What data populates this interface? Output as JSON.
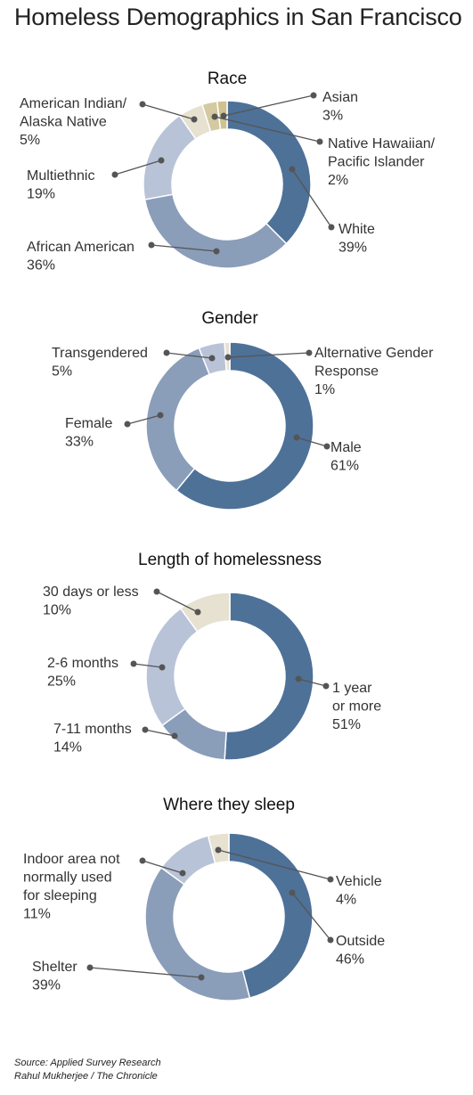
{
  "title": "Homeless Demographics in San Francisco",
  "source_line1": "Source: Applied Survey Research",
  "source_line2": "Rahul Mukherjee / The Chronicle",
  "chart_data": [
    {
      "type": "pie",
      "title": "Race",
      "slices": [
        {
          "lines": [
            "White"
          ],
          "pct_label": "39%",
          "value": 39,
          "color": "#4e7198"
        },
        {
          "lines": [
            "African American"
          ],
          "pct_label": "36%",
          "value": 36,
          "color": "#8a9db9"
        },
        {
          "lines": [
            "Multiethnic"
          ],
          "pct_label": "19%",
          "value": 19,
          "color": "#b8c3d8"
        },
        {
          "lines": [
            "American Indian/",
            "Alaska Native"
          ],
          "pct_label": "5%",
          "value": 5,
          "color": "#e6e1d0"
        },
        {
          "lines": [
            "Asian"
          ],
          "pct_label": "3%",
          "value": 3,
          "color": "#d4c9a0"
        },
        {
          "lines": [
            "Native Hawaiian/",
            "Pacific Islander"
          ],
          "pct_label": "2%",
          "value": 2,
          "color": "#cfc290"
        }
      ]
    },
    {
      "type": "pie",
      "title": "Gender",
      "slices": [
        {
          "lines": [
            "Male"
          ],
          "pct_label": "61%",
          "value": 61,
          "color": "#4e7198"
        },
        {
          "lines": [
            "Female"
          ],
          "pct_label": "33%",
          "value": 33,
          "color": "#8a9db9"
        },
        {
          "lines": [
            "Transgendered"
          ],
          "pct_label": "5%",
          "value": 5,
          "color": "#b8c3d8"
        },
        {
          "lines": [
            "Alternative Gender",
            "Response"
          ],
          "pct_label": "1%",
          "value": 1,
          "color": "#e6e1d0"
        }
      ]
    },
    {
      "type": "pie",
      "title": "Length of  homelessness",
      "slices": [
        {
          "lines": [
            "1 year",
            "or more"
          ],
          "pct_label": "51%",
          "value": 51,
          "color": "#4e7198"
        },
        {
          "lines": [
            "7-11 months"
          ],
          "pct_label": "14%",
          "value": 14,
          "color": "#8a9db9"
        },
        {
          "lines": [
            "2-6 months"
          ],
          "pct_label": "25%",
          "value": 25,
          "color": "#b8c3d8"
        },
        {
          "lines": [
            "30 days or less"
          ],
          "pct_label": "10%",
          "value": 10,
          "color": "#e6e1d0"
        }
      ]
    },
    {
      "type": "pie",
      "title": "Where they sleep",
      "slices": [
        {
          "lines": [
            "Outside"
          ],
          "pct_label": "46%",
          "value": 46,
          "color": "#4e7198"
        },
        {
          "lines": [
            "Shelter"
          ],
          "pct_label": "39%",
          "value": 39,
          "color": "#8a9db9"
        },
        {
          "lines": [
            "Indoor area not",
            "normally used",
            "for sleeping"
          ],
          "pct_label": "11%",
          "value": 11,
          "color": "#b8c3d8"
        },
        {
          "lines": [
            "Vehicle"
          ],
          "pct_label": "4%",
          "value": 4,
          "color": "#e6e1d0"
        }
      ]
    }
  ]
}
